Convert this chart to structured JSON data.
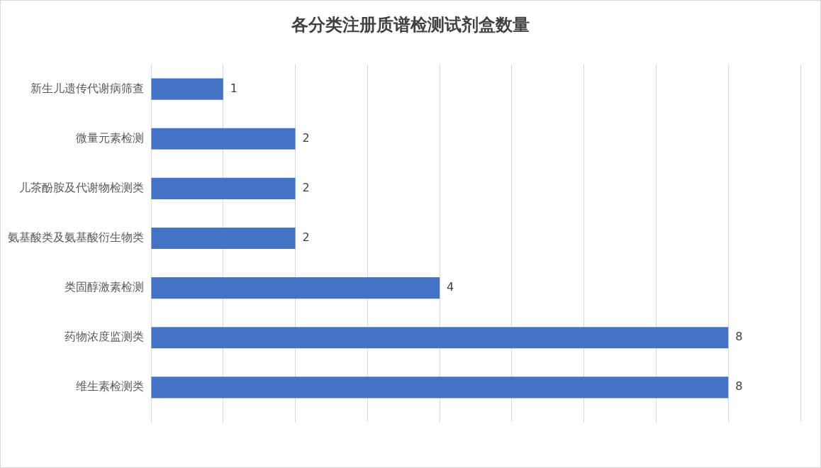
{
  "chart_data": {
    "type": "bar",
    "orientation": "horizontal",
    "title": "各分类注册质谱检测试剂盒数量",
    "categories": [
      "新生儿遗传代谢病筛查",
      "微量元素检测",
      "儿茶酚胺及代谢物检测类",
      "氨基酸类及氨基酸衍生物类",
      "类固醇激素检测",
      "药物浓度监测类",
      "维生素检测类"
    ],
    "values": [
      1,
      2,
      2,
      2,
      4,
      8,
      8
    ],
    "color": "#4472c4",
    "xlim": [
      0,
      9
    ],
    "xticks": [
      {
        "value": 0,
        "label": null
      },
      {
        "value": 1,
        "label": null
      },
      {
        "value": 2,
        "label": null
      },
      {
        "value": 3,
        "label": null
      },
      {
        "value": 4,
        "label": null
      },
      {
        "value": 5,
        "label": null
      },
      {
        "value": 6,
        "label": null
      },
      {
        "value": 7,
        "label": null
      },
      {
        "value": 8,
        "label": null
      },
      {
        "value": 9,
        "label": null
      }
    ],
    "grid": "x",
    "tick_labels": "y",
    "data_labels": true,
    "legend": false
  }
}
